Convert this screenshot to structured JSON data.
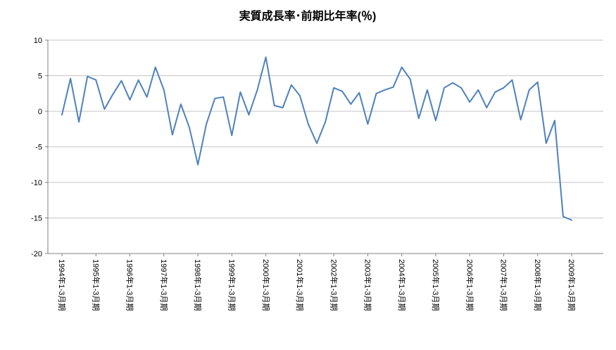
{
  "chart_data": {
    "type": "line",
    "title": "実質成長率･前期比年率(％)",
    "series_name": "実質成長率",
    "line_color": "#4F81BD",
    "gridline_color": "#C6C6C6",
    "axis_color": "#808080",
    "background": "#FFFFFF",
    "ylim": [
      -20,
      10
    ],
    "yticks": [
      10,
      5,
      0,
      -5,
      -10,
      -15,
      -20
    ],
    "x_tick_every": 4,
    "x_tick_labels": [
      "1994年1-3月期",
      "1995年1-3月期",
      "1996年1-3月期",
      "1997年1-3月期",
      "1998年1-3月期",
      "1999年1-3月期",
      "2000年1-3月期",
      "2001年1-3月期",
      "2002年1-3月期",
      "2003年1-3月期",
      "2004年1-3月期",
      "2005年1-3月期",
      "2006年1-3月期",
      "2007年1-3月期",
      "2008年1-3月期",
      "2009年1-3月期"
    ],
    "x_unit": "quarter",
    "x_range_note": "quarterly from 1994Q1 to 2009Q1",
    "values": [
      -0.5,
      4.6,
      -1.5,
      4.9,
      4.4,
      0.3,
      2.4,
      4.3,
      1.6,
      4.4,
      2.0,
      6.2,
      3.0,
      -3.3,
      1.0,
      -2.3,
      -7.5,
      -1.8,
      1.8,
      2.0,
      -3.4,
      2.7,
      -0.5,
      3.0,
      7.6,
      0.8,
      0.5,
      3.7,
      2.2,
      -1.8,
      -4.5,
      -1.5,
      3.3,
      2.8,
      1.0,
      2.6,
      -1.8,
      2.5,
      3.0,
      3.4,
      6.2,
      4.5,
      -1.0,
      3.0,
      -1.3,
      3.3,
      4.0,
      3.3,
      1.3,
      3.0,
      0.5,
      2.7,
      3.3,
      4.4,
      -1.2,
      3.0,
      4.1,
      -4.5,
      -1.3,
      -14.8,
      -15.3
    ],
    "grid": "horizontal",
    "legend": "none"
  }
}
